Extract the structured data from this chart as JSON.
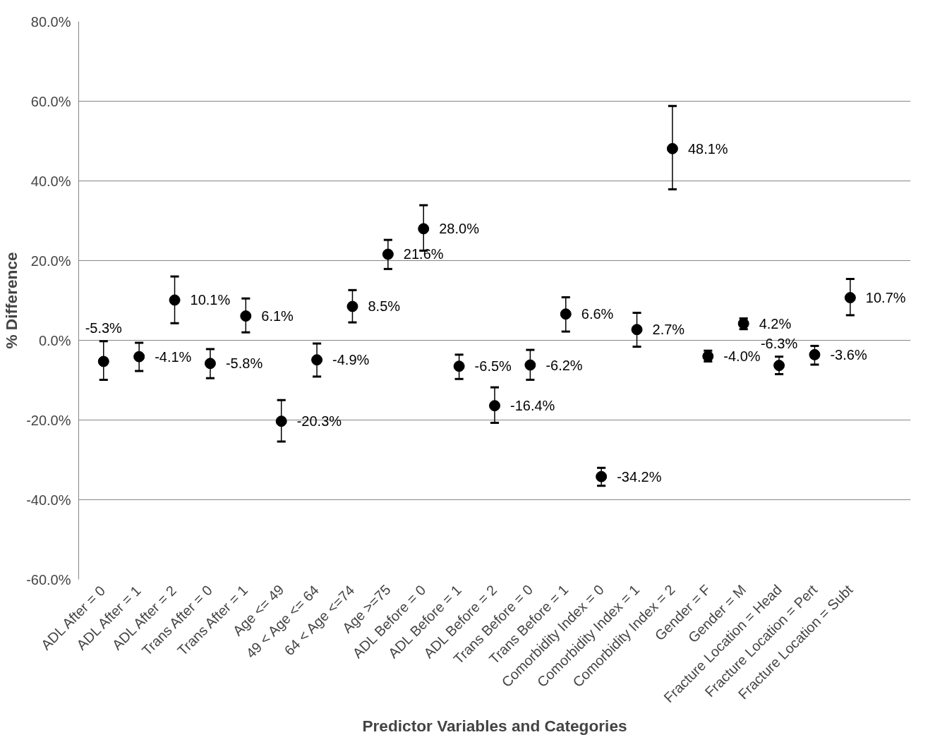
{
  "chart_data": {
    "type": "scatter",
    "xlabel": "Predictor Variables and Categories",
    "ylabel": "% Difference",
    "categories": [
      "ADL After = 0",
      "ADL After = 1",
      "ADL After = 2",
      "Trans After = 0",
      "Trans After = 1",
      "Age <= 49",
      "49 < Age <= 64",
      "64 < Age <=74",
      "Age >=75",
      "ADL Before = 0",
      "ADL Before = 1",
      "ADL Before = 2",
      "Trans Before = 0",
      "Trans Before = 1",
      "Comorbidity Index = 0",
      "Comorbidity Index = 1",
      "Comorbidity Index = 2",
      "Gender = F",
      "Gender = M",
      "Fracture Location = Head",
      "Fracture Location = Pert",
      "Fracture Location = Subt"
    ],
    "series": [
      {
        "color": "#000000",
        "values": [
          -5.3,
          -4.1,
          10.1,
          -5.8,
          6.1,
          -20.3,
          -4.9,
          8.5,
          21.6,
          28.0,
          -6.5,
          -16.4,
          -6.2,
          6.6,
          -34.2,
          2.7,
          48.1,
          -4.0,
          4.2,
          -6.3,
          -3.6,
          10.7
        ],
        "value_labels": [
          "-5.3%",
          "-4.1%",
          "10.1%",
          "-5.8%",
          "6.1%",
          "-20.3%",
          "-4.9%",
          "8.5%",
          "21.6%",
          "28.0%",
          "-6.5%",
          "-16.4%",
          "-6.2%",
          "6.6%",
          "-34.2%",
          "2.7%",
          "48.1%",
          "-4.0%",
          "4.2%",
          "-6.3%",
          "-3.6%",
          "10.7%"
        ],
        "errors": [
          [
            -9.9,
            -0.2
          ],
          [
            -7.7,
            -0.6
          ],
          [
            4.3,
            16.0
          ],
          [
            -9.5,
            -2.2
          ],
          [
            2.0,
            10.5
          ],
          [
            -25.4,
            -15.0
          ],
          [
            -9.1,
            -0.8
          ],
          [
            4.5,
            12.6
          ],
          [
            17.9,
            25.2
          ],
          [
            22.5,
            33.9
          ],
          [
            -9.7,
            -3.6
          ],
          [
            -20.7,
            -11.8
          ],
          [
            -9.9,
            -2.4
          ],
          [
            2.2,
            10.8
          ],
          [
            -36.5,
            -32.0
          ],
          [
            -1.6,
            6.9
          ],
          [
            37.9,
            58.8
          ],
          [
            -5.3,
            -2.6
          ],
          [
            2.8,
            5.5
          ],
          [
            -8.5,
            -4.1
          ],
          [
            -6.1,
            -1.4
          ],
          [
            6.3,
            15.4
          ]
        ]
      }
    ],
    "ylim": [
      -60,
      80
    ],
    "yticks": [
      {
        "value": -60,
        "label": "-60.0%"
      },
      {
        "value": -40,
        "label": "-40.0%"
      },
      {
        "value": -20,
        "label": "-20.0%"
      },
      {
        "value": 0,
        "label": "0.0%"
      },
      {
        "value": 20,
        "label": "20.0%"
      },
      {
        "value": 40,
        "label": "40.0%"
      },
      {
        "value": 60,
        "label": "60.0%"
      },
      {
        "value": 80,
        "label": "80.0%"
      }
    ],
    "grid": "y",
    "marker": "circle"
  }
}
